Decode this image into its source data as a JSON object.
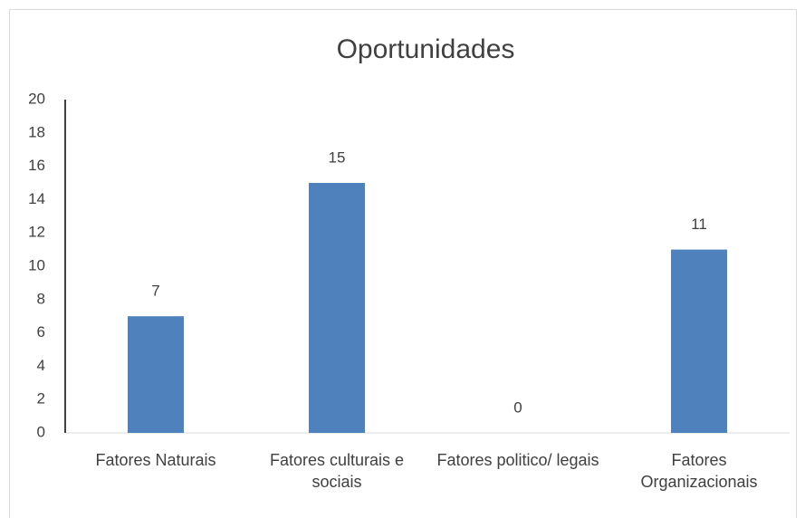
{
  "chart_data": {
    "type": "bar",
    "title": "Oportunidades",
    "categories": [
      "Fatores Naturais",
      "Fatores culturais e sociais",
      "Fatores politico/ legais",
      "Fatores Organizacionais"
    ],
    "values": [
      7,
      15,
      0,
      11
    ],
    "color": "#4f81bd",
    "ylim": [
      0,
      20
    ],
    "yticks": [
      0,
      2,
      4,
      6,
      8,
      10,
      12,
      14,
      16,
      18,
      20
    ],
    "grid": false
  }
}
